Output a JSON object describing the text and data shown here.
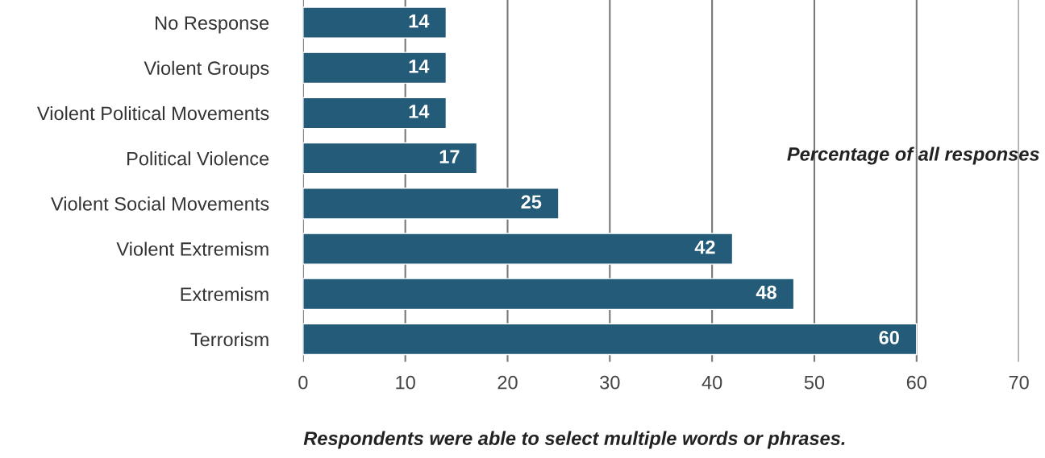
{
  "chart_data": {
    "type": "bar",
    "orientation": "horizontal",
    "categories": [
      "No Response",
      "Violent Groups",
      "Violent Political Movements",
      "Political Violence",
      "Violent Social Movements",
      "Violent Extremism",
      "Extremism",
      "Terrorism"
    ],
    "values": [
      14,
      14,
      14,
      17,
      25,
      42,
      48,
      60
    ],
    "color": "#235b78",
    "xlim": [
      0,
      70
    ],
    "xticks": [
      0,
      10,
      20,
      30,
      40,
      50,
      60,
      70
    ],
    "grid": "x",
    "data_labels": true,
    "annotations": [
      "Percentage of all responses",
      "Respondents were able to select multiple words or phrases."
    ]
  }
}
